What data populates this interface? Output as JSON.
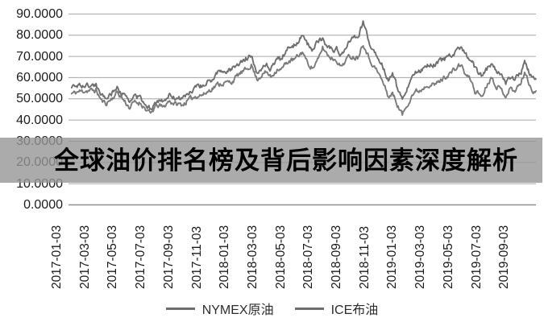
{
  "banner": {
    "text": "全球油价排名榜及背后影响因素深度解析",
    "overlay_color": "#969696",
    "overlay_opacity": 0.8,
    "text_color": "#000000"
  },
  "colors": {
    "background": "#ffffff",
    "grid": "#a6a6a6",
    "axis": "#8f8f8f",
    "tick_text": "#1c1c1c",
    "legend_swatch": "#6e6e6e"
  },
  "chart_data": {
    "type": "line",
    "title": "",
    "xlabel": "",
    "ylabel": "",
    "grid": true,
    "legend_position": "bottom",
    "ylim": [
      0,
      90
    ],
    "y_ticks": [
      "90.0000",
      "80.0000",
      "70.0000",
      "60.0000",
      "50.0000",
      "40.0000",
      "30.0000",
      "20.0000",
      "10.0000",
      "0.0000"
    ],
    "x_ticks": [
      "2017-01-03",
      "2017-03-03",
      "2017-05-03",
      "2017-07-03",
      "2017-09-03",
      "2017-11-03",
      "2018-01-03",
      "2018-03-03",
      "2018-05-03",
      "2018-07-03",
      "2018-09-03",
      "2018-11-03",
      "2019-01-03",
      "2019-03-03",
      "2019-05-03",
      "2019-07-03",
      "2019-09-03"
    ],
    "x_unit": "months after 2017-01-03; daily price series, tick spacing = 2 months",
    "anchor_months": [
      0,
      0.5,
      1,
      1.8,
      2.2,
      2.5,
      3,
      3.3,
      3.8,
      4.2,
      4.5,
      5,
      5.4,
      5.7,
      6,
      6.3,
      6.6,
      7,
      7.5,
      8,
      8.5,
      9,
      9.5,
      10,
      10.5,
      11,
      11.5,
      12,
      12.5,
      12.9,
      13.3,
      13.7,
      14,
      14.3,
      14.8,
      15,
      15.5,
      16,
      16.6,
      16.9,
      17.3,
      17.7,
      18,
      18.4,
      18.7,
      19,
      19.3,
      19.8,
      20,
      20.5,
      20.9,
      21.3,
      21.6,
      22,
      22.4,
      22.7,
      23,
      23.4,
      23.7,
      24,
      24.4,
      24.7,
      25,
      25.5,
      26,
      26.5,
      27,
      27.5,
      27.9,
      28.2,
      28.6,
      28.9,
      29.2,
      29.4,
      29.8,
      30.1,
      30.4,
      30.8,
      31.1,
      31.4,
      31.7,
      32,
      32.2,
      32.45,
      32.7,
      33,
      33.3
    ],
    "series": [
      {
        "name": "NYMEX原油",
        "color": "#7b7b7b",
        "values": [
          52.3,
          53.3,
          53.8,
          54.0,
          49.0,
          47.8,
          50.5,
          53.2,
          49.2,
          45.8,
          48.3,
          48.0,
          44.7,
          42.7,
          46.0,
          47.0,
          45.8,
          49.0,
          47.5,
          47.3,
          49.8,
          51.5,
          52.0,
          54.5,
          56.8,
          57.5,
          58.0,
          61.5,
          63.5,
          66.1,
          59.2,
          61.5,
          62.5,
          60.2,
          64.5,
          63.5,
          67.5,
          68.5,
          72.2,
          67.0,
          64.5,
          68.5,
          74.1,
          70.5,
          69.0,
          68.5,
          65.0,
          69.5,
          70.0,
          69.5,
          76.4,
          69.5,
          66.0,
          62.0,
          56.5,
          51.0,
          52.5,
          46.5,
          42.5,
          46.5,
          52.0,
          53.5,
          54.0,
          57.0,
          56.5,
          59.0,
          61.5,
          64.0,
          66.3,
          61.5,
          59.0,
          53.5,
          52.5,
          51.1,
          57.5,
          60.2,
          56.5,
          54.0,
          51.5,
          55.0,
          53.5,
          56.0,
          57.5,
          62.9,
          58.0,
          54.0,
          53.8
        ]
      },
      {
        "name": "ICE布油",
        "color": "#6f6f6f",
        "values": [
          55.5,
          56.5,
          56.0,
          56.5,
          51.5,
          50.7,
          53.0,
          55.5,
          51.5,
          48.5,
          51.0,
          50.5,
          47.0,
          44.9,
          48.5,
          49.5,
          48.2,
          51.5,
          50.5,
          50.0,
          53.0,
          55.5,
          56.5,
          58.5,
          62.5,
          63.0,
          64.0,
          67.0,
          69.0,
          70.5,
          62.8,
          65.0,
          66.0,
          64.0,
          69.5,
          68.5,
          73.5,
          75.5,
          79.8,
          76.0,
          73.5,
          77.5,
          78.0,
          74.5,
          73.0,
          73.5,
          71.0,
          75.5,
          77.5,
          79.0,
          86.1,
          77.0,
          72.5,
          70.0,
          63.5,
          59.0,
          61.5,
          54.0,
          50.5,
          54.5,
          61.0,
          62.5,
          63.5,
          66.5,
          66.0,
          68.0,
          69.5,
          71.5,
          74.9,
          70.5,
          69.0,
          64.5,
          62.0,
          60.0,
          64.5,
          66.5,
          63.5,
          60.5,
          57.5,
          60.0,
          59.0,
          61.0,
          62.5,
          69.0,
          63.5,
          59.5,
          59.3
        ]
      }
    ]
  }
}
